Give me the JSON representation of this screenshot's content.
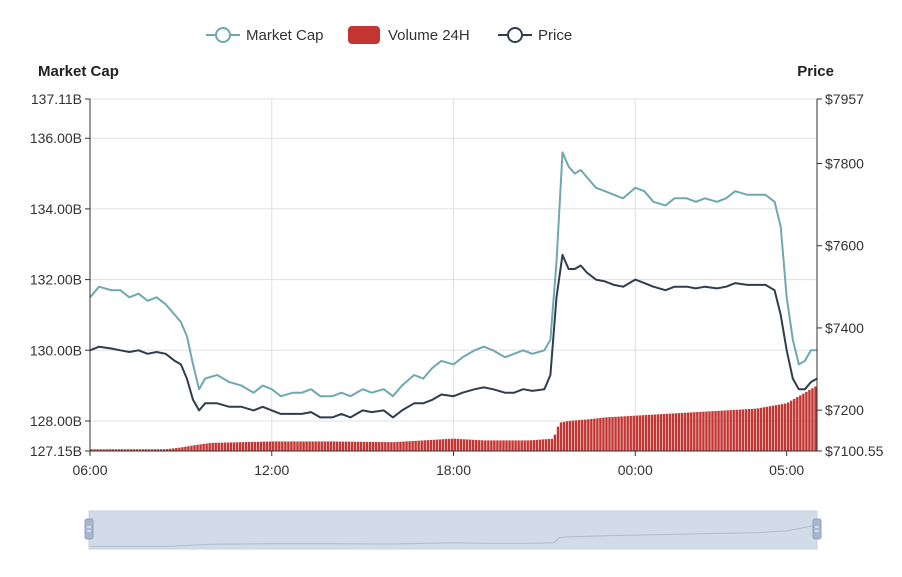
{
  "legend": {
    "market_cap": "Market Cap",
    "volume": "Volume 24H",
    "price": "Price"
  },
  "colors": {
    "market_cap": "#6fa8b1",
    "price": "#2f3e4e",
    "volume": "#c23531",
    "grid": "#e0e0e0",
    "axis": "#333333",
    "slider_fill": "#d2dbe8",
    "slider_handle": "#a6b7cf"
  },
  "chart_data": {
    "type": "line",
    "x_ticks": [
      "06:00",
      "12:00",
      "18:00",
      "00:00",
      "05:00"
    ],
    "y_left": {
      "label": "Market Cap",
      "min": 127.15,
      "max": 137.11,
      "ticks": [
        128.0,
        130.0,
        132.0,
        134.0,
        136.0
      ],
      "tick_labels": [
        "127.15B",
        "128.00B",
        "130.00B",
        "132.00B",
        "134.00B",
        "136.00B",
        "137.11B"
      ]
    },
    "y_right": {
      "label": "Price",
      "min": 7100.55,
      "max": 7957,
      "ticks": [
        7200,
        7400,
        7600,
        7800
      ],
      "tick_labels": [
        "$7100.55",
        "$7200",
        "$7400",
        "$7600",
        "$7800",
        "$7957"
      ]
    },
    "series": [
      {
        "name": "Market Cap",
        "axis": "left",
        "kind": "line",
        "points": [
          [
            0,
            131.5
          ],
          [
            0.3,
            131.8
          ],
          [
            0.7,
            131.7
          ],
          [
            1.0,
            131.7
          ],
          [
            1.3,
            131.5
          ],
          [
            1.6,
            131.6
          ],
          [
            1.9,
            131.4
          ],
          [
            2.2,
            131.5
          ],
          [
            2.5,
            131.3
          ],
          [
            2.8,
            131.0
          ],
          [
            3.0,
            130.8
          ],
          [
            3.2,
            130.4
          ],
          [
            3.4,
            129.6
          ],
          [
            3.6,
            128.9
          ],
          [
            3.8,
            129.2
          ],
          [
            4.2,
            129.3
          ],
          [
            4.6,
            129.1
          ],
          [
            5.0,
            129.0
          ],
          [
            5.4,
            128.8
          ],
          [
            5.7,
            129.0
          ],
          [
            6.0,
            128.9
          ],
          [
            6.3,
            128.7
          ],
          [
            6.7,
            128.8
          ],
          [
            7.0,
            128.8
          ],
          [
            7.3,
            128.9
          ],
          [
            7.6,
            128.7
          ],
          [
            8.0,
            128.7
          ],
          [
            8.3,
            128.8
          ],
          [
            8.6,
            128.7
          ],
          [
            9.0,
            128.9
          ],
          [
            9.3,
            128.8
          ],
          [
            9.7,
            128.9
          ],
          [
            10.0,
            128.7
          ],
          [
            10.3,
            129.0
          ],
          [
            10.7,
            129.3
          ],
          [
            11.0,
            129.2
          ],
          [
            11.3,
            129.5
          ],
          [
            11.6,
            129.7
          ],
          [
            12.0,
            129.6
          ],
          [
            12.3,
            129.8
          ],
          [
            12.7,
            130.0
          ],
          [
            13.0,
            130.1
          ],
          [
            13.3,
            130.0
          ],
          [
            13.7,
            129.8
          ],
          [
            14.0,
            129.9
          ],
          [
            14.3,
            130.0
          ],
          [
            14.6,
            129.9
          ],
          [
            15.0,
            130.0
          ],
          [
            15.2,
            130.3
          ],
          [
            15.4,
            132.5
          ],
          [
            15.6,
            135.6
          ],
          [
            15.8,
            135.2
          ],
          [
            16.0,
            135.0
          ],
          [
            16.2,
            135.1
          ],
          [
            16.4,
            134.9
          ],
          [
            16.7,
            134.6
          ],
          [
            17.0,
            134.5
          ],
          [
            17.3,
            134.4
          ],
          [
            17.6,
            134.3
          ],
          [
            18.0,
            134.6
          ],
          [
            18.3,
            134.5
          ],
          [
            18.6,
            134.2
          ],
          [
            19.0,
            134.1
          ],
          [
            19.3,
            134.3
          ],
          [
            19.7,
            134.3
          ],
          [
            20.0,
            134.2
          ],
          [
            20.3,
            134.3
          ],
          [
            20.7,
            134.2
          ],
          [
            21.0,
            134.3
          ],
          [
            21.3,
            134.5
          ],
          [
            21.7,
            134.4
          ],
          [
            22.0,
            134.4
          ],
          [
            22.3,
            134.4
          ],
          [
            22.6,
            134.2
          ],
          [
            22.8,
            133.5
          ],
          [
            23.0,
            131.5
          ],
          [
            23.2,
            130.3
          ],
          [
            23.4,
            129.6
          ],
          [
            23.6,
            129.7
          ],
          [
            23.8,
            130.0
          ],
          [
            24.0,
            130.0
          ]
        ]
      },
      {
        "name": "Volume 24H",
        "axis": "left",
        "kind": "bar",
        "points": [
          [
            0,
            127.2
          ],
          [
            1.5,
            127.2
          ],
          [
            2.5,
            127.2
          ],
          [
            3.0,
            127.25
          ],
          [
            3.5,
            127.32
          ],
          [
            4.0,
            127.38
          ],
          [
            5.0,
            127.4
          ],
          [
            6.0,
            127.42
          ],
          [
            8.0,
            127.42
          ],
          [
            10.0,
            127.4
          ],
          [
            11.0,
            127.45
          ],
          [
            12.0,
            127.5
          ],
          [
            13.0,
            127.45
          ],
          [
            14.5,
            127.45
          ],
          [
            15.3,
            127.5
          ],
          [
            15.5,
            127.95
          ],
          [
            15.8,
            128.0
          ],
          [
            16.5,
            128.05
          ],
          [
            17.0,
            128.1
          ],
          [
            18.0,
            128.15
          ],
          [
            19.0,
            128.2
          ],
          [
            20.0,
            128.25
          ],
          [
            21.0,
            128.3
          ],
          [
            22.0,
            128.35
          ],
          [
            23.0,
            128.5
          ],
          [
            23.6,
            128.8
          ],
          [
            24.0,
            129.0
          ]
        ]
      },
      {
        "name": "Price",
        "axis": "left",
        "kind": "line",
        "points": [
          [
            0,
            130.0
          ],
          [
            0.3,
            130.1
          ],
          [
            0.7,
            130.05
          ],
          [
            1.0,
            130.0
          ],
          [
            1.3,
            129.95
          ],
          [
            1.6,
            130.0
          ],
          [
            1.9,
            129.9
          ],
          [
            2.2,
            129.95
          ],
          [
            2.5,
            129.9
          ],
          [
            2.8,
            129.7
          ],
          [
            3.0,
            129.6
          ],
          [
            3.2,
            129.2
          ],
          [
            3.4,
            128.6
          ],
          [
            3.6,
            128.3
          ],
          [
            3.8,
            128.5
          ],
          [
            4.2,
            128.5
          ],
          [
            4.6,
            128.4
          ],
          [
            5.0,
            128.4
          ],
          [
            5.4,
            128.3
          ],
          [
            5.7,
            128.4
          ],
          [
            6.0,
            128.3
          ],
          [
            6.3,
            128.2
          ],
          [
            6.7,
            128.2
          ],
          [
            7.0,
            128.2
          ],
          [
            7.3,
            128.25
          ],
          [
            7.6,
            128.1
          ],
          [
            8.0,
            128.1
          ],
          [
            8.3,
            128.2
          ],
          [
            8.6,
            128.1
          ],
          [
            9.0,
            128.3
          ],
          [
            9.3,
            128.25
          ],
          [
            9.7,
            128.3
          ],
          [
            10.0,
            128.1
          ],
          [
            10.3,
            128.3
          ],
          [
            10.7,
            128.5
          ],
          [
            11.0,
            128.5
          ],
          [
            11.3,
            128.6
          ],
          [
            11.6,
            128.75
          ],
          [
            12.0,
            128.7
          ],
          [
            12.3,
            128.8
          ],
          [
            12.7,
            128.9
          ],
          [
            13.0,
            128.95
          ],
          [
            13.3,
            128.9
          ],
          [
            13.7,
            128.8
          ],
          [
            14.0,
            128.8
          ],
          [
            14.3,
            128.9
          ],
          [
            14.6,
            128.85
          ],
          [
            15.0,
            128.9
          ],
          [
            15.2,
            129.3
          ],
          [
            15.4,
            131.5
          ],
          [
            15.6,
            132.7
          ],
          [
            15.8,
            132.3
          ],
          [
            16.0,
            132.3
          ],
          [
            16.2,
            132.4
          ],
          [
            16.4,
            132.2
          ],
          [
            16.7,
            132.0
          ],
          [
            17.0,
            131.95
          ],
          [
            17.3,
            131.85
          ],
          [
            17.6,
            131.8
          ],
          [
            18.0,
            132.0
          ],
          [
            18.3,
            131.9
          ],
          [
            18.6,
            131.8
          ],
          [
            19.0,
            131.7
          ],
          [
            19.3,
            131.8
          ],
          [
            19.7,
            131.8
          ],
          [
            20.0,
            131.75
          ],
          [
            20.3,
            131.8
          ],
          [
            20.7,
            131.75
          ],
          [
            21.0,
            131.8
          ],
          [
            21.3,
            131.9
          ],
          [
            21.7,
            131.85
          ],
          [
            22.0,
            131.85
          ],
          [
            22.3,
            131.85
          ],
          [
            22.6,
            131.7
          ],
          [
            22.8,
            131.0
          ],
          [
            23.0,
            130.0
          ],
          [
            23.2,
            129.2
          ],
          [
            23.4,
            128.9
          ],
          [
            23.6,
            128.9
          ],
          [
            23.8,
            129.1
          ],
          [
            24.0,
            129.2
          ]
        ]
      }
    ],
    "grid": true,
    "legend_position": "top-center"
  },
  "data_zoom": {
    "start": 0,
    "end": 100
  }
}
